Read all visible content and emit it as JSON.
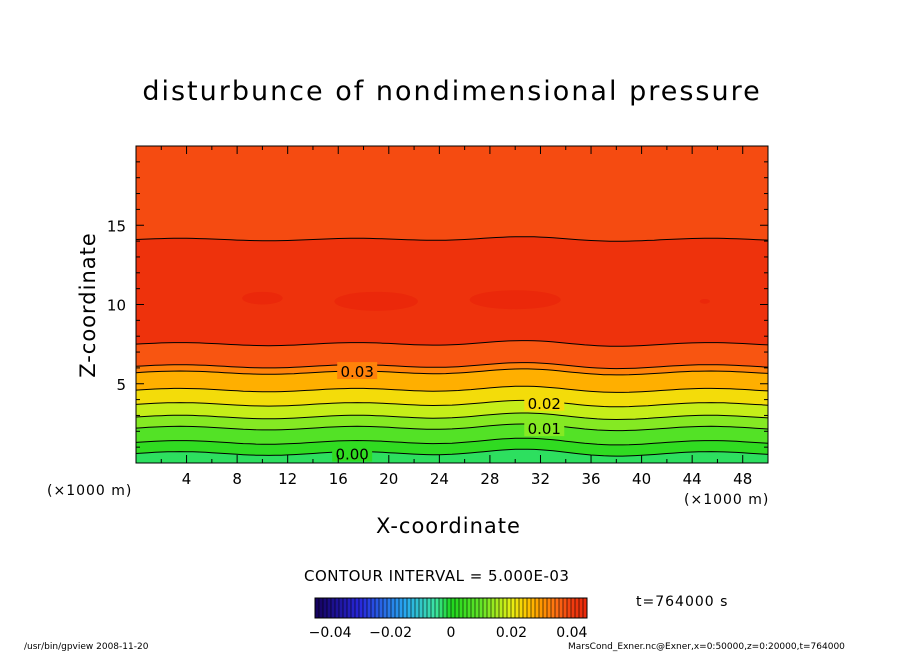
{
  "chart_data": {
    "type": "heatmap",
    "title": "disturbunce of nondimensional pressure",
    "xlabel": "X-coordinate",
    "ylabel": "Z-coordinate",
    "x_unit": "(×1000 m)",
    "y_unit": "(×1000 m)",
    "xlim": [
      0,
      50
    ],
    "ylim": [
      0,
      20
    ],
    "x_ticks": [
      4,
      8,
      12,
      16,
      20,
      24,
      28,
      32,
      36,
      40,
      44,
      48
    ],
    "y_ticks": [
      5,
      10,
      15
    ],
    "contour_interval": 0.005,
    "contour_labels": [
      {
        "text": "0.03",
        "x": 17.5,
        "z": 5.8
      },
      {
        "text": "0.02",
        "x": 32.3,
        "z": 3.8
      },
      {
        "text": "0.01",
        "x": 32.3,
        "z": 2.2
      },
      {
        "text": "0.00",
        "x": 17.1,
        "z": 0.6
      }
    ],
    "contours": [
      {
        "level": 0.045,
        "z": 14.1
      },
      {
        "level": 0.04,
        "z": 7.5
      },
      {
        "level": 0.035,
        "z": 6.1
      },
      {
        "level": 0.03,
        "z": 5.7
      },
      {
        "level": 0.025,
        "z": 4.6
      },
      {
        "level": 0.02,
        "z": 3.7
      },
      {
        "level": 0.015,
        "z": 2.9
      },
      {
        "level": 0.01,
        "z": 2.2
      },
      {
        "level": 0.005,
        "z": 1.3
      },
      {
        "level": 0.0,
        "z": 0.6
      }
    ],
    "colorbar": {
      "min": -0.045,
      "max": 0.045,
      "tick_labels": [
        "−0.04",
        "−0.02",
        "0",
        "0.02",
        "0.04"
      ],
      "tick_values": [
        -0.04,
        -0.02,
        0,
        0.02,
        0.04
      ]
    }
  },
  "contour_interval_text": "CONTOUR INTERVAL = 5.000E-03",
  "time_text": "t=764000  s",
  "footer_left": "/usr/bin/gpview   2008-11-20",
  "footer_right": "MarsCond_Exner.nc@Exner,x=0:50000,z=0:20000,t=764000"
}
